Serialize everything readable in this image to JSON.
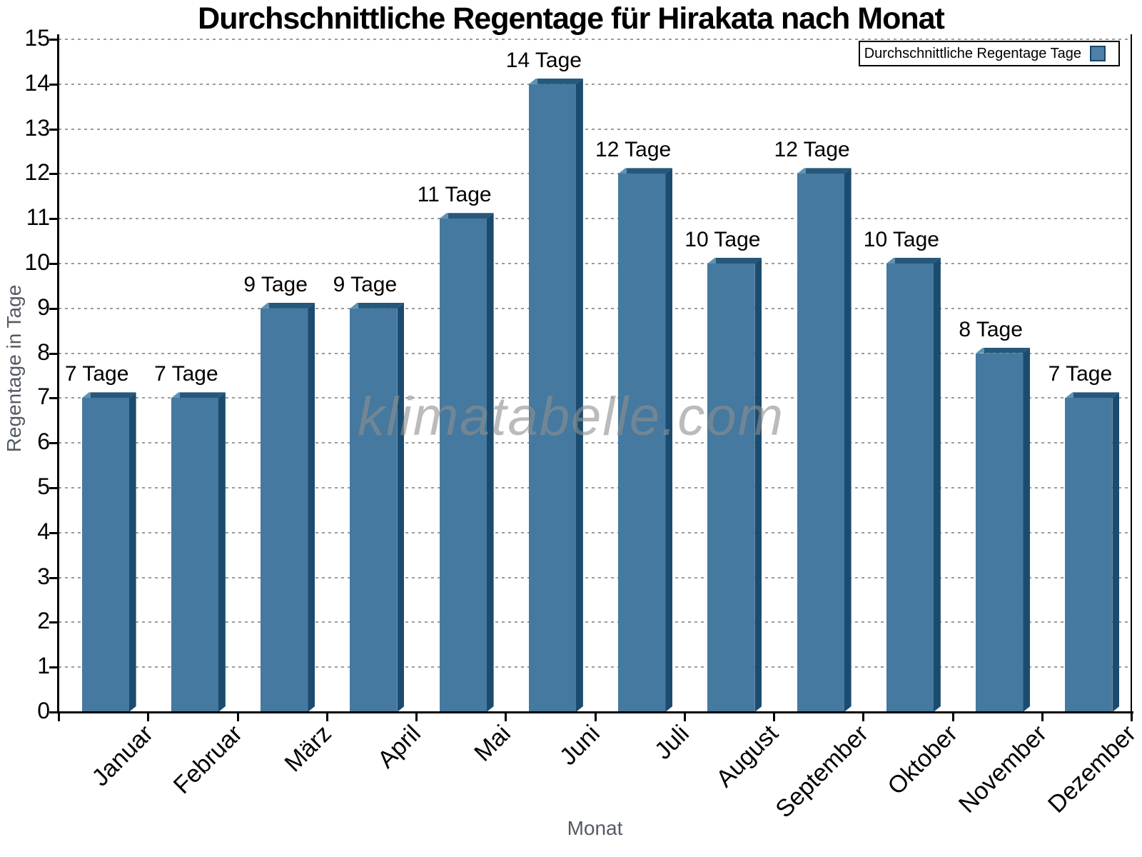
{
  "chart_data": {
    "type": "bar",
    "title": "Durchschnittliche Regentage für Hirakata nach Monat",
    "categories": [
      "Januar",
      "Februar",
      "März",
      "April",
      "Mai",
      "Juni",
      "Juli",
      "August",
      "September",
      "Oktober",
      "November",
      "Dezember"
    ],
    "values": [
      7,
      7,
      9,
      9,
      11,
      14,
      12,
      10,
      12,
      10,
      8,
      7
    ],
    "value_label_suffix": " Tage",
    "xlabel": "Monat",
    "ylabel": "Regentage in Tage",
    "ylim": [
      0,
      15
    ],
    "ytick_step": 1,
    "grid": "horizontal-dotted",
    "legend": {
      "label": "Durchschnittliche Regentage Tage",
      "position": "top-right"
    },
    "watermark": "klimatabelle.com",
    "colors": {
      "bar_front": "#45799F",
      "bar_side": "#1B4C70",
      "bar_top": "#26587B",
      "bar_top_highlight": "#5E93B5",
      "legend_swatch": "#4E80A8",
      "legend_swatch_border": "#16466B",
      "grid": "#9C9C9C",
      "axis": "#000000",
      "axis_title_gray": "#555B63",
      "watermark_gray": "#8F8F8F"
    }
  }
}
